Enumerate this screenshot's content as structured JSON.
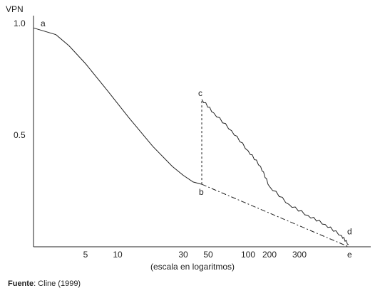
{
  "chart_data": {
    "type": "line",
    "ylabel": "VPN",
    "xlabel": "(escala en logaritmos)",
    "y_ticks": [
      "1.0",
      "0.5"
    ],
    "y_tick_values": [
      1.0,
      0.5
    ],
    "ylim": [
      0,
      1.02
    ],
    "x_ticks": [
      "5",
      "10",
      "30",
      "50",
      "100",
      "200",
      "300"
    ],
    "x_tick_values": [
      5,
      10,
      30,
      50,
      100,
      200,
      300
    ],
    "point_labels": {
      "a": "a",
      "b": "b",
      "c": "c",
      "d": "d",
      "e": "e"
    },
    "series": [
      {
        "id": "curve_ab",
        "style": "solid",
        "x": [
          1,
          2,
          3,
          5,
          8,
          12,
          18,
          25,
          30,
          35,
          40
        ],
        "y": [
          0.98,
          0.95,
          0.9,
          0.82,
          0.7,
          0.58,
          0.45,
          0.36,
          0.32,
          0.29,
          0.28
        ]
      },
      {
        "id": "jump_bc",
        "style": "dashed",
        "x": [
          40,
          40
        ],
        "y": [
          0.28,
          0.66
        ]
      },
      {
        "id": "curve_cd",
        "style": "solid-jagged",
        "x": [
          40,
          55,
          75,
          100,
          150,
          200,
          260,
          330,
          400,
          480,
          520
        ],
        "y": [
          0.66,
          0.6,
          0.52,
          0.43,
          0.36,
          0.27,
          0.19,
          0.14,
          0.1,
          0.05,
          0.01
        ]
      },
      {
        "id": "line_be",
        "style": "dash-dot",
        "x": [
          40,
          520
        ],
        "y": [
          0.28,
          0.0
        ]
      }
    ]
  },
  "footer": {
    "label": "Fuente",
    "text": ": Cline (1999)"
  }
}
